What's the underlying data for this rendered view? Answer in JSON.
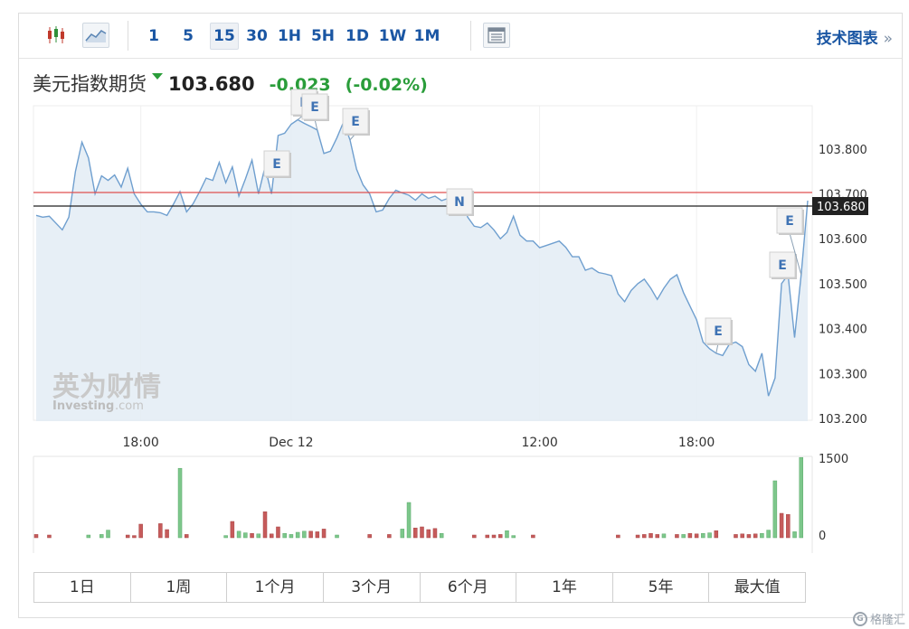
{
  "toolbar": {
    "timeframes": [
      "1",
      "5",
      "15",
      "30",
      "1H",
      "5H",
      "1D",
      "1W",
      "1M"
    ],
    "active_timeframe": "15",
    "tech_chart_label": "技术图表",
    "tech_chart_arrow": "»",
    "icons": [
      "candlestick-icon",
      "area-chart-icon",
      "layout-icon"
    ]
  },
  "header": {
    "instrument": "美元指数期货",
    "last": "103.680",
    "change": "-0.023",
    "change_pct": "(-0.02%)",
    "direction_icon": "down-triangle-icon"
  },
  "watermark": {
    "brand_cn": "英为财情",
    "brand_en": "Investing",
    "brand_suffix": ".com"
  },
  "ranges": [
    "1日",
    "1周",
    "1个月",
    "3个月",
    "6个月",
    "1年",
    "5年",
    "最大值"
  ],
  "corner_badge": {
    "glyph": "G",
    "text": "格隆汇"
  },
  "colors": {
    "line": "#6f9fcf",
    "area_fill": "#e3ecf4",
    "reference_line": "#e05050",
    "last_price_line": "#222222",
    "vol_up": "#7dc78b",
    "vol_down": "#c65b5b",
    "label_link": "#1a56a3",
    "change_green": "#2a9d3a"
  },
  "chart_data": {
    "type": "area",
    "price": {
      "y_ticks": [
        "103.800",
        "103.700",
        "103.600",
        "103.500",
        "103.400",
        "103.300",
        "103.200"
      ],
      "ylim": [
        103.2,
        103.9
      ],
      "last_price_label": "103.680",
      "reference_level": 103.703,
      "values": [
        103.652,
        103.648,
        103.65,
        103.635,
        103.62,
        103.648,
        103.75,
        103.815,
        103.78,
        103.7,
        103.74,
        103.73,
        103.742,
        103.715,
        103.757,
        103.7,
        103.677,
        103.66,
        103.66,
        103.658,
        103.652,
        103.677,
        103.705,
        103.66,
        103.678,
        103.705,
        103.735,
        103.73,
        103.77,
        103.725,
        103.76,
        103.695,
        103.733,
        103.775,
        103.7,
        103.76,
        103.7,
        103.83,
        103.835,
        103.855,
        103.865,
        103.857,
        103.85,
        103.842,
        103.79,
        103.795,
        103.825,
        103.86,
        103.82,
        103.755,
        103.72,
        103.7,
        103.66,
        103.664,
        103.69,
        103.708,
        103.702,
        103.697,
        103.686,
        103.7,
        103.69,
        103.695,
        103.685,
        103.69,
        103.698,
        103.69,
        103.648,
        103.628,
        103.625,
        103.635,
        103.62,
        103.6,
        103.614,
        103.65,
        103.608,
        103.595,
        103.595,
        103.58,
        103.585,
        103.59,
        103.595,
        103.581,
        103.56,
        103.56,
        103.53,
        103.535,
        103.525,
        103.522,
        103.518,
        103.477,
        103.46,
        103.485,
        103.5,
        103.51,
        103.49,
        103.465,
        103.49,
        103.51,
        103.52,
        103.48,
        103.45,
        103.42,
        103.37,
        103.355,
        103.345,
        103.34,
        103.365,
        103.37,
        103.36,
        103.32,
        103.305,
        103.345,
        103.25,
        103.29,
        103.5,
        103.52,
        103.38,
        103.52,
        103.685
      ],
      "events": [
        {
          "label": "E",
          "idx": 40
        },
        {
          "label": "E",
          "idx": 43
        },
        {
          "label": "E",
          "idx": 48
        },
        {
          "label": "E",
          "idx": 35
        },
        {
          "label": "N",
          "idx": 63
        },
        {
          "label": "E",
          "idx": 104
        },
        {
          "label": "E",
          "idx": 115
        },
        {
          "label": "E",
          "idx": 117
        }
      ]
    },
    "x_ticks": [
      {
        "label": "18:00",
        "idx": 16
      },
      {
        "label": "Dec 12",
        "idx": 39
      },
      {
        "label": "12:00",
        "idx": 77
      },
      {
        "label": "18:00",
        "idx": 101
      }
    ],
    "volume": {
      "y_ticks": [
        "1500",
        "0"
      ],
      "ylim": [
        0,
        1500
      ],
      "bars": [
        [
          0,
          60,
          "d"
        ],
        [
          2,
          50,
          "d"
        ],
        [
          8,
          50,
          "u"
        ],
        [
          10,
          60,
          "u"
        ],
        [
          11,
          140,
          "u"
        ],
        [
          14,
          50,
          "d"
        ],
        [
          15,
          40,
          "d"
        ],
        [
          16,
          250,
          "d"
        ],
        [
          19,
          260,
          "d"
        ],
        [
          20,
          150,
          "d"
        ],
        [
          22,
          1280,
          "u"
        ],
        [
          23,
          60,
          "d"
        ],
        [
          29,
          40,
          "u"
        ],
        [
          30,
          300,
          "d"
        ],
        [
          31,
          120,
          "u"
        ],
        [
          32,
          90,
          "u"
        ],
        [
          33,
          80,
          "d"
        ],
        [
          34,
          70,
          "u"
        ],
        [
          35,
          480,
          "d"
        ],
        [
          36,
          70,
          "d"
        ],
        [
          37,
          200,
          "d"
        ],
        [
          38,
          80,
          "u"
        ],
        [
          39,
          60,
          "u"
        ],
        [
          40,
          100,
          "u"
        ],
        [
          41,
          120,
          "u"
        ],
        [
          42,
          120,
          "d"
        ],
        [
          43,
          110,
          "d"
        ],
        [
          44,
          160,
          "d"
        ],
        [
          46,
          50,
          "u"
        ],
        [
          51,
          60,
          "d"
        ],
        [
          54,
          60,
          "d"
        ],
        [
          56,
          160,
          "u"
        ],
        [
          57,
          650,
          "u"
        ],
        [
          58,
          180,
          "d"
        ],
        [
          59,
          200,
          "d"
        ],
        [
          60,
          150,
          "d"
        ],
        [
          61,
          170,
          "d"
        ],
        [
          62,
          80,
          "u"
        ],
        [
          67,
          50,
          "d"
        ],
        [
          69,
          50,
          "d"
        ],
        [
          70,
          50,
          "d"
        ],
        [
          71,
          60,
          "d"
        ],
        [
          72,
          130,
          "u"
        ],
        [
          73,
          40,
          "u"
        ],
        [
          76,
          50,
          "d"
        ],
        [
          89,
          50,
          "d"
        ],
        [
          92,
          50,
          "d"
        ],
        [
          93,
          60,
          "d"
        ],
        [
          94,
          80,
          "d"
        ],
        [
          95,
          60,
          "d"
        ],
        [
          96,
          70,
          "u"
        ],
        [
          98,
          60,
          "d"
        ],
        [
          99,
          60,
          "u"
        ],
        [
          100,
          80,
          "d"
        ],
        [
          101,
          70,
          "d"
        ],
        [
          102,
          80,
          "u"
        ],
        [
          103,
          90,
          "u"
        ],
        [
          104,
          130,
          "d"
        ],
        [
          107,
          60,
          "d"
        ],
        [
          108,
          70,
          "d"
        ],
        [
          109,
          60,
          "d"
        ],
        [
          110,
          70,
          "d"
        ],
        [
          111,
          80,
          "u"
        ],
        [
          112,
          140,
          "u"
        ],
        [
          113,
          1050,
          "u"
        ],
        [
          114,
          450,
          "d"
        ],
        [
          115,
          430,
          "d"
        ],
        [
          116,
          110,
          "u"
        ],
        [
          117,
          1480,
          "u"
        ]
      ]
    }
  }
}
